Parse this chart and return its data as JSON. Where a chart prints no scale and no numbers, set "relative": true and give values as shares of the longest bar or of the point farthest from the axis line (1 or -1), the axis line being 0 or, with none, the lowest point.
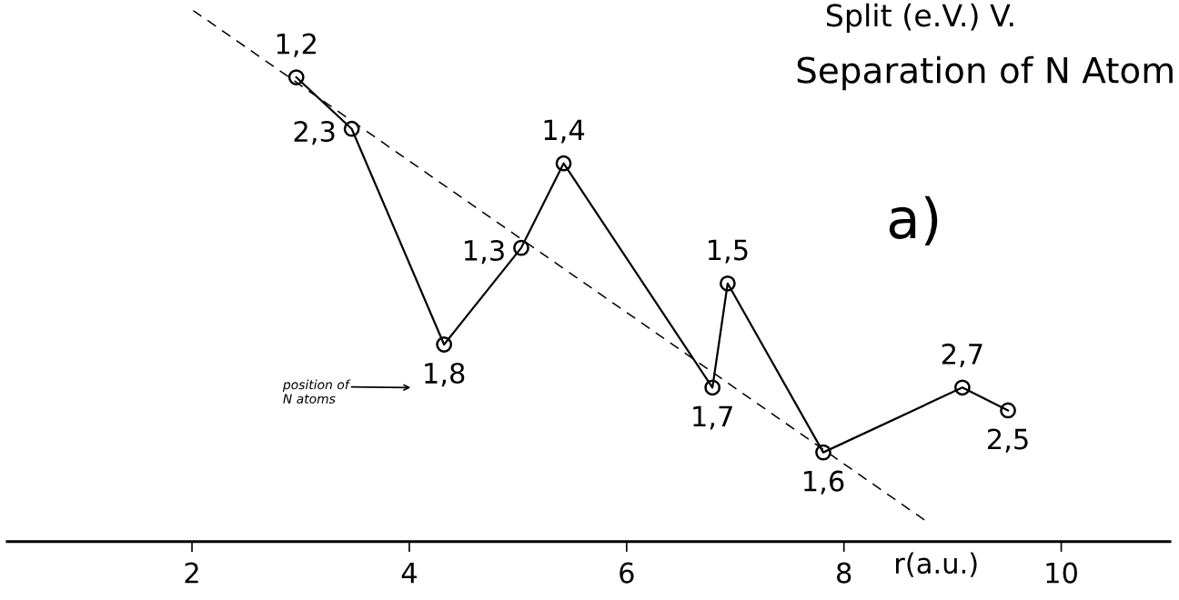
{
  "chart_data": {
    "type": "line",
    "title": "Split (e.V.) V.",
    "subtitle": "Separation of N Atom",
    "xlabel": "r(a.u.)",
    "relative": true,
    "xlim": [
      0.3,
      11.0
    ],
    "xticks": [
      2,
      4,
      6,
      8,
      10
    ],
    "grid": false,
    "legend": false,
    "tick_labels": "x",
    "series": [
      {
        "color": "#000000",
        "marker": "circle",
        "line_style": "solid",
        "x": [
          2.96,
          3.47,
          4.32,
          5.03,
          5.42,
          6.79,
          6.93,
          7.81,
          9.09,
          9.51
        ],
        "values": [
          0.874,
          0.777,
          0.371,
          0.553,
          0.712,
          0.29,
          0.486,
          0.168,
          0.29,
          0.247
        ]
      },
      {
        "color": "#000000",
        "marker": "none",
        "line_style": "dashed",
        "x": [
          2.01,
          8.74
        ],
        "values": [
          1,
          0.041
        ]
      }
    ],
    "annotations": [
      "a)",
      {
        "text": "1,2",
        "x": 2.96,
        "y": 0.874
      },
      {
        "text": "2,3",
        "x": 3.47,
        "y": 0.777
      },
      {
        "text": "1,8",
        "x": 4.32,
        "y": 0.371
      },
      {
        "text": "1,3",
        "x": 5.03,
        "y": 0.553
      },
      {
        "text": "1,4",
        "x": 5.42,
        "y": 0.712
      },
      {
        "text": "1,7",
        "x": 6.79,
        "y": 0.29
      },
      {
        "text": "1,5",
        "x": 6.93,
        "y": 0.486
      },
      {
        "text": "1,6",
        "x": 7.81,
        "y": 0.168
      },
      {
        "text": "2,7",
        "x": 9.09,
        "y": 0.29
      },
      {
        "text": "2,5",
        "x": 9.51,
        "y": 0.247
      },
      "position of\nN atoms"
    ]
  }
}
